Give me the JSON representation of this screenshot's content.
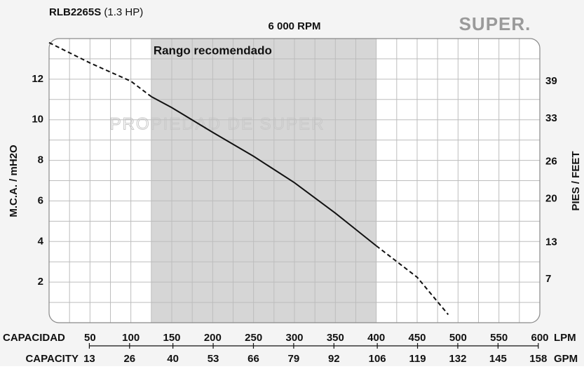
{
  "chart_data": {
    "type": "line",
    "model": "RLB2265S",
    "power": "(1.3 HP)",
    "subtitle": "6 000 RPM",
    "brand": "SUPER.",
    "watermark": "PROPIEDAD DE SUPER",
    "band": [
      125,
      400
    ],
    "band_label": "Rango recomendado",
    "band_color": "#d6d6d6",
    "ylabel": "M.C.A. / mH2O",
    "y2label": "PIES / FEET",
    "xlabel": "CAPACIDAD",
    "xunit": "LPM",
    "x2label": "CAPACITY",
    "x2unit": "GPM",
    "xlim": [
      0,
      600
    ],
    "xticks": [
      50,
      100,
      150,
      200,
      250,
      300,
      350,
      400,
      450,
      500,
      550,
      600
    ],
    "x_minor_ticks": [
      25,
      75,
      125,
      175,
      225,
      275,
      325,
      375,
      425,
      475,
      525,
      575
    ],
    "x2lim": [
      0,
      158.5
    ],
    "x2ticks": [
      13,
      26,
      40,
      53,
      66,
      79,
      92,
      106,
      119,
      132,
      145,
      158
    ],
    "ylim": [
      0,
      14
    ],
    "yticks": [
      2,
      4,
      6,
      8,
      10,
      12
    ],
    "y_minor_ticks": [
      1,
      3,
      5,
      7,
      9,
      11,
      13
    ],
    "y2lim": [
      0,
      45.93
    ],
    "y2ticks": [
      7,
      13,
      20,
      26,
      33,
      39
    ],
    "grid": true,
    "series": [
      {
        "color": "#111111",
        "dashed": true,
        "x": [
          0,
          50,
          100,
          125
        ],
        "values": [
          13.8,
          12.8,
          11.9,
          11.14
        ]
      },
      {
        "color": "#111111",
        "dashed": false,
        "x": [
          125,
          150,
          200,
          250,
          300,
          350,
          400
        ],
        "values": [
          11.14,
          10.6,
          9.38,
          8.2,
          6.9,
          5.4,
          3.79
        ]
      },
      {
        "color": "#111111",
        "dashed": true,
        "x": [
          400,
          450,
          488
        ],
        "values": [
          3.79,
          2.24,
          0.4
        ]
      }
    ]
  }
}
